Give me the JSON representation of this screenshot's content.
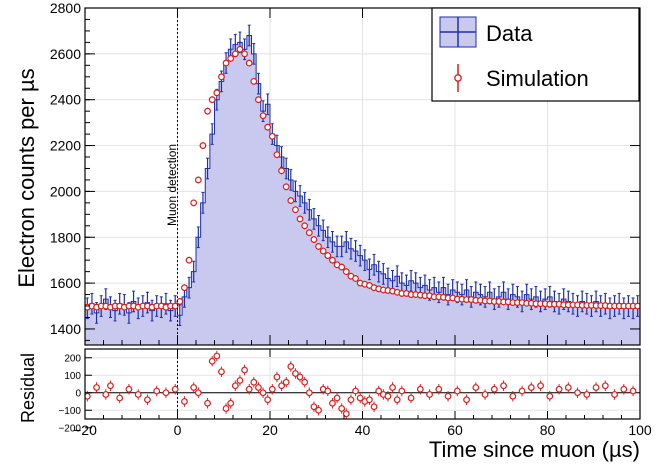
{
  "chart_data": [
    {
      "type": "histogram",
      "panel": "main",
      "xlabel": "Time since muon (µs)",
      "ylabel": "Electron counts per µs",
      "xlim": [
        -20,
        100
      ],
      "ylim": [
        1330,
        2800
      ],
      "x_ticks": [
        -20,
        0,
        20,
        40,
        60,
        80,
        100
      ],
      "x_tick_labels": [
        "−20",
        "0",
        "20",
        "40",
        "60",
        "80",
        "100"
      ],
      "y_ticks": [
        1400,
        1600,
        1800,
        2000,
        2200,
        2400,
        2600,
        2800
      ],
      "y_tick_labels": [
        "1400",
        "1600",
        "1800",
        "2000",
        "2200",
        "2400",
        "2600",
        "2800"
      ],
      "grid": true,
      "legend": {
        "position": "top-right"
      },
      "annotation": {
        "text": "Muon detection",
        "x": 0
      },
      "series": [
        {
          "name": "Data",
          "style": "filled-histogram-with-error-bars",
          "color": "#1d2fa8",
          "fill": "#c9c9f0",
          "bin_width": 1,
          "error": 45,
          "x": [
            -20,
            -19,
            -18,
            -17,
            -16,
            -15,
            -14,
            -13,
            -12,
            -11,
            -10,
            -9,
            -8,
            -7,
            -6,
            -5,
            -4,
            -3,
            -2,
            -1,
            0,
            1,
            2,
            3,
            4,
            5,
            6,
            7,
            8,
            9,
            10,
            11,
            12,
            13,
            14,
            15,
            16,
            17,
            18,
            19,
            20,
            21,
            22,
            23,
            24,
            25,
            26,
            27,
            28,
            29,
            30,
            31,
            32,
            33,
            34,
            35,
            36,
            37,
            38,
            39,
            40,
            41,
            42,
            43,
            44,
            45,
            46,
            47,
            48,
            49,
            50,
            51,
            52,
            53,
            54,
            55,
            56,
            57,
            58,
            59,
            60,
            61,
            62,
            63,
            64,
            65,
            66,
            67,
            68,
            69,
            70,
            71,
            72,
            73,
            74,
            75,
            76,
            77,
            78,
            79,
            80,
            81,
            82,
            83,
            84,
            85,
            86,
            87,
            88,
            89,
            90,
            91,
            92,
            93,
            94,
            95,
            96,
            97,
            98,
            99
          ],
          "values": [
            1490,
            1510,
            1470,
            1500,
            1530,
            1495,
            1480,
            1510,
            1505,
            1470,
            1520,
            1490,
            1500,
            1515,
            1480,
            1500,
            1495,
            1510,
            1480,
            1500,
            1460,
            1540,
            1580,
            1650,
            1800,
            1950,
            2100,
            2250,
            2400,
            2480,
            2560,
            2620,
            2640,
            2650,
            2620,
            2680,
            2600,
            2470,
            2350,
            2380,
            2250,
            2200,
            2150,
            2100,
            2050,
            2000,
            1980,
            1950,
            1920,
            1880,
            1850,
            1830,
            1800,
            1780,
            1760,
            1760,
            1780,
            1750,
            1740,
            1720,
            1700,
            1660,
            1680,
            1650,
            1640,
            1620,
            1610,
            1630,
            1600,
            1590,
            1610,
            1600,
            1580,
            1590,
            1570,
            1580,
            1560,
            1580,
            1550,
            1570,
            1560,
            1550,
            1570,
            1540,
            1560,
            1550,
            1540,
            1560,
            1530,
            1540,
            1560,
            1530,
            1550,
            1540,
            1520,
            1550,
            1530,
            1540,
            1520,
            1530,
            1540,
            1520,
            1510,
            1530,
            1520,
            1510,
            1500,
            1520,
            1510,
            1500,
            1520,
            1500,
            1510,
            1490,
            1500,
            1510,
            1490,
            1500,
            1490,
            1500
          ]
        },
        {
          "name": "Simulation",
          "style": "points-with-error-bars",
          "color": "#d42020",
          "error": 15,
          "x": [
            -19.5,
            -18.5,
            -17.5,
            -16.5,
            -15.5,
            -14.5,
            -13.5,
            -12.5,
            -11.5,
            -10.5,
            -9.5,
            -8.5,
            -7.5,
            -6.5,
            -5.5,
            -4.5,
            -3.5,
            -2.5,
            -1.5,
            -0.5,
            0.5,
            1.5,
            2.5,
            3.5,
            4.5,
            5.5,
            6.5,
            7.5,
            8.5,
            9.5,
            10.5,
            11.5,
            12.5,
            13.5,
            14.5,
            15.5,
            16.5,
            17.5,
            18.5,
            19.5,
            20.5,
            21.5,
            22.5,
            23.5,
            24.5,
            25.5,
            26.5,
            27.5,
            28.5,
            29.5,
            30.5,
            31.5,
            32.5,
            33.5,
            34.5,
            35.5,
            36.5,
            37.5,
            38.5,
            39.5,
            40.5,
            41.5,
            42.5,
            43.5,
            44.5,
            45.5,
            46.5,
            47.5,
            48.5,
            49.5,
            50.5,
            51.5,
            52.5,
            53.5,
            54.5,
            55.5,
            56.5,
            57.5,
            58.5,
            59.5,
            60.5,
            61.5,
            62.5,
            63.5,
            64.5,
            65.5,
            66.5,
            67.5,
            68.5,
            69.5,
            70.5,
            71.5,
            72.5,
            73.5,
            74.5,
            75.5,
            76.5,
            77.5,
            78.5,
            79.5,
            80.5,
            81.5,
            82.5,
            83.5,
            84.5,
            85.5,
            86.5,
            87.5,
            88.5,
            89.5,
            90.5,
            91.5,
            92.5,
            93.5,
            94.5,
            95.5,
            96.5,
            97.5,
            98.5,
            99.5
          ],
          "values": [
            1495,
            1500,
            1495,
            1500,
            1500,
            1495,
            1500,
            1500,
            1495,
            1500,
            1500,
            1495,
            1500,
            1500,
            1495,
            1500,
            1500,
            1495,
            1500,
            1500,
            1520,
            1580,
            1700,
            1950,
            2050,
            2200,
            2350,
            2400,
            2430,
            2500,
            2560,
            2580,
            2600,
            2620,
            2600,
            2560,
            2480,
            2400,
            2330,
            2280,
            2240,
            2160,
            2090,
            2020,
            1960,
            1920,
            1880,
            1850,
            1820,
            1790,
            1760,
            1740,
            1720,
            1700,
            1680,
            1670,
            1650,
            1630,
            1620,
            1600,
            1595,
            1590,
            1580,
            1575,
            1570,
            1568,
            1565,
            1560,
            1555,
            1555,
            1550,
            1550,
            1548,
            1545,
            1545,
            1540,
            1540,
            1538,
            1535,
            1535,
            1530,
            1530,
            1528,
            1528,
            1525,
            1525,
            1522,
            1522,
            1520,
            1520,
            1518,
            1518,
            1515,
            1515,
            1515,
            1512,
            1512,
            1510,
            1510,
            1510,
            1508,
            1508,
            1508,
            1505,
            1505,
            1505,
            1505,
            1503,
            1503,
            1503,
            1502,
            1502,
            1502,
            1500,
            1500,
            1500,
            1500,
            1500,
            1500,
            1500
          ]
        }
      ]
    },
    {
      "type": "scatter",
      "panel": "residual",
      "xlabel": "Time since muon (µs)",
      "ylabel": "Residual",
      "xlim": [
        -20,
        100
      ],
      "ylim": [
        -150,
        250
      ],
      "y_ticks": [
        -100,
        0,
        100,
        200
      ],
      "y_tick_labels": [
        "−100",
        "0",
        "100",
        "200"
      ],
      "minor_y_ticks": [
        -200,
        -100,
        0,
        100,
        200
      ],
      "minor_y_tick_labels": [
        "−200",
        "−100",
        "0",
        "100",
        "200"
      ],
      "reference_line": 0,
      "series": [
        {
          "name": "Residual",
          "color": "#d42020",
          "error": 30,
          "x": [
            -19.5,
            -17.5,
            -15.5,
            -14.5,
            -12.5,
            -10.5,
            -8.5,
            -6.5,
            -4.5,
            -2.5,
            -0.5,
            1.5,
            3.5,
            4.5,
            6.5,
            7.5,
            8.5,
            9.5,
            10.5,
            11.5,
            12.5,
            13.5,
            14.5,
            15.5,
            16.5,
            17.5,
            18.5,
            19.5,
            20.5,
            21.5,
            22.5,
            23.5,
            24.5,
            25.5,
            26.5,
            27.5,
            28.5,
            29.5,
            30.5,
            31.5,
            32.5,
            33.5,
            34.5,
            35.5,
            36.5,
            37.5,
            38.5,
            39.5,
            40.5,
            41.5,
            42.5,
            43.5,
            44.5,
            45.5,
            46.5,
            47.5,
            48.5,
            50.5,
            52.5,
            54.5,
            56.5,
            58.5,
            60.5,
            62.5,
            64.5,
            66.5,
            68.5,
            70.5,
            72.5,
            74.5,
            76.5,
            78.5,
            80.5,
            82.5,
            84.5,
            86.5,
            88.5,
            90.5,
            92.5,
            94.5,
            96.5,
            98.5
          ],
          "values": [
            -20,
            30,
            -10,
            40,
            -30,
            20,
            -10,
            -40,
            10,
            0,
            20,
            -50,
            30,
            0,
            -60,
            180,
            210,
            120,
            -90,
            -60,
            40,
            70,
            130,
            20,
            60,
            30,
            0,
            -40,
            20,
            90,
            40,
            60,
            150,
            110,
            90,
            60,
            0,
            -80,
            -100,
            20,
            10,
            -60,
            -30,
            -90,
            -120,
            -40,
            10,
            -30,
            -50,
            -40,
            -80,
            10,
            -10,
            -20,
            30,
            -40,
            10,
            -30,
            20,
            -10,
            20,
            -20,
            10,
            -40,
            30,
            -10,
            20,
            40,
            -20,
            10,
            30,
            40,
            -20,
            20,
            30,
            0,
            -10,
            30,
            40,
            -10,
            20,
            10
          ]
        }
      ]
    }
  ]
}
